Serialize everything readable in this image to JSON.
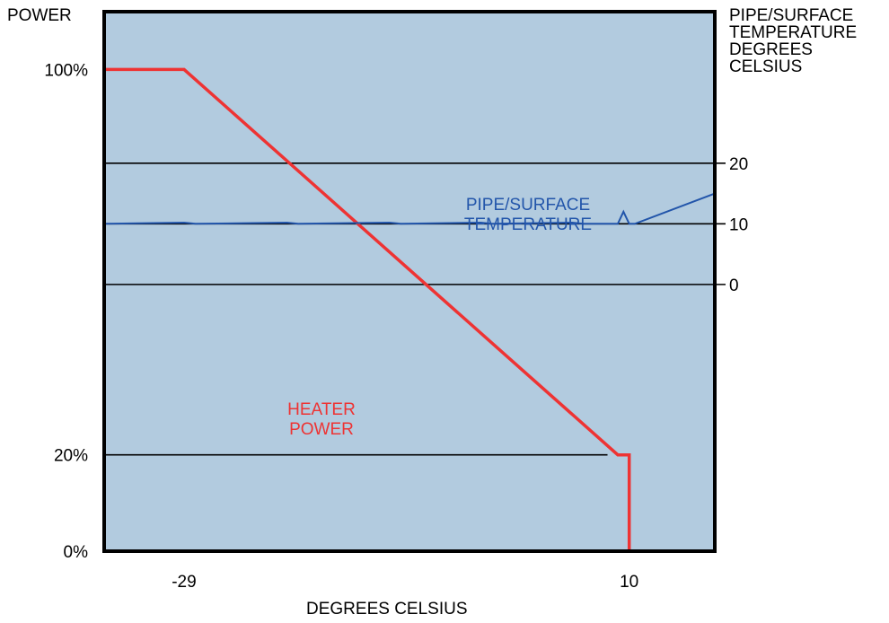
{
  "chart_data": {
    "type": "line",
    "xlabel": "DEGREES CELSIUS",
    "left_axis_title": "POWER",
    "right_axis_title_lines": [
      "PIPE/SURFACE",
      "TEMPERATURE",
      "DEGREES",
      "CELSIUS"
    ],
    "x_ticks": [
      {
        "label": "-29",
        "value": -29
      },
      {
        "label": "10",
        "value": 10
      }
    ],
    "left_ticks": [
      {
        "label": "100%",
        "value": 100
      },
      {
        "label": "20%",
        "value": 20
      },
      {
        "label": "0%",
        "value": 0
      }
    ],
    "right_ticks": [
      {
        "label": "20",
        "value": 20
      },
      {
        "label": "10",
        "value": 10
      },
      {
        "label": "0",
        "value": 0
      }
    ],
    "xlim": [
      -36,
      17.5
    ],
    "left_ylim": [
      0,
      112
    ],
    "right_ylim": [
      -44,
      45
    ],
    "series": [
      {
        "name": "HEATER POWER",
        "name_lines": [
          "HEATER",
          "POWER"
        ],
        "color": "#ee3333",
        "axis": "left",
        "x": [
          -36,
          -29,
          9,
          9,
          10,
          10
        ],
        "y": [
          100,
          100,
          20,
          20,
          20,
          0
        ]
      },
      {
        "name": "PIPE/SURFACE TEMPERATURE",
        "name_lines": [
          "PIPE/SURFACE",
          "TEMPERATURE"
        ],
        "color": "#2255aa",
        "axis": "right",
        "x": [
          -36,
          -29,
          -28,
          -20,
          -19,
          -11,
          -10,
          -3,
          -2,
          5,
          6,
          9,
          9.5,
          10,
          10.5,
          17.5
        ],
        "y": [
          10,
          10.2,
          10,
          10.2,
          10,
          10.2,
          10,
          10.2,
          10,
          10.2,
          10,
          10,
          12,
          10,
          10,
          15
        ]
      }
    ],
    "gridlines_right_axis": [
      20,
      10,
      0
    ],
    "gridlines_left_axis": [
      20
    ],
    "plot_background": "#b2cbdf",
    "grid": false,
    "legend": "inline labels"
  }
}
